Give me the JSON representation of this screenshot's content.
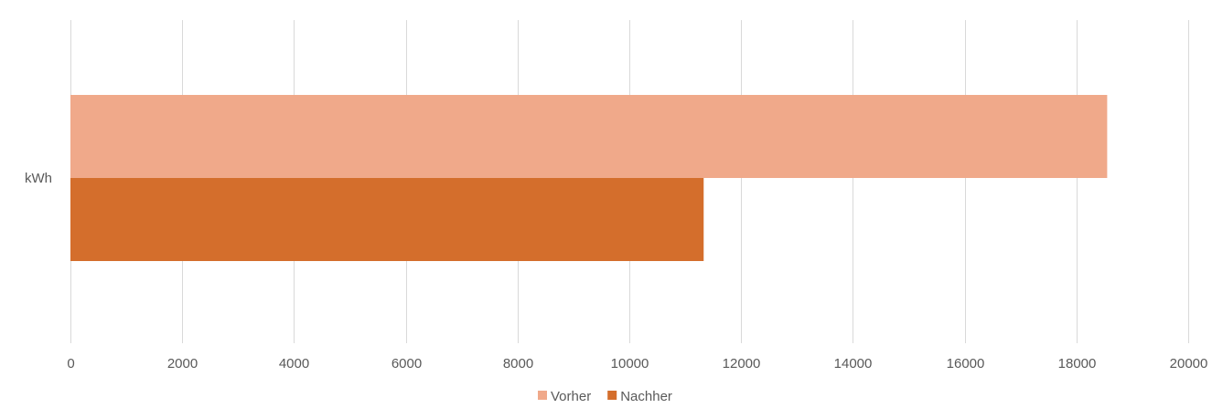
{
  "chart_data": {
    "type": "bar",
    "orientation": "horizontal",
    "categories": [
      "kWh"
    ],
    "series": [
      {
        "name": "Vorher",
        "values": [
          18550
        ],
        "color": "#F0A98A"
      },
      {
        "name": "Nachher",
        "values": [
          11330
        ],
        "color": "#D46E2C"
      }
    ],
    "xlim": [
      0,
      20000
    ],
    "xticks": [
      "0",
      "2000",
      "4000",
      "6000",
      "8000",
      "10000",
      "12000",
      "14000",
      "16000",
      "18000",
      "20000"
    ],
    "grid": true,
    "gridline_color": "#D9D9D9",
    "legend_position": "bottom"
  }
}
